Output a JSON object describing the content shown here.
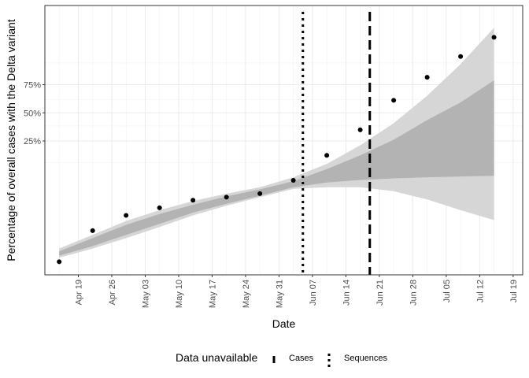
{
  "chart_data": {
    "type": "scatter",
    "xlabel": "Date",
    "ylabel": "Percentage of overall cases with the Delta variant",
    "x_axis": {
      "min": "2021-04-12",
      "max": "2021-07-21",
      "ticks": [
        {
          "date": "2021-04-19",
          "label": "Apr 19"
        },
        {
          "date": "2021-04-26",
          "label": "Apr 26"
        },
        {
          "date": "2021-05-03",
          "label": "May 03"
        },
        {
          "date": "2021-05-10",
          "label": "May 10"
        },
        {
          "date": "2021-05-17",
          "label": "May 17"
        },
        {
          "date": "2021-05-24",
          "label": "May 24"
        },
        {
          "date": "2021-05-31",
          "label": "May 31"
        },
        {
          "date": "2021-06-07",
          "label": "Jun 07"
        },
        {
          "date": "2021-06-14",
          "label": "Jun 14"
        },
        {
          "date": "2021-06-21",
          "label": "Jun 21"
        },
        {
          "date": "2021-06-28",
          "label": "Jun 28"
        },
        {
          "date": "2021-07-05",
          "label": "Jul 05"
        },
        {
          "date": "2021-07-12",
          "label": "Jul 12"
        },
        {
          "date": "2021-07-19",
          "label": "Jul 19"
        }
      ]
    },
    "y_axis": {
      "scale": "logit",
      "ticks": [
        {
          "value": 0.25,
          "label": "25%"
        },
        {
          "value": 0.5,
          "label": "50%"
        },
        {
          "value": 0.75,
          "label": "75%"
        }
      ]
    },
    "observed": [
      {
        "date": "2021-04-15",
        "value": 0.003
      },
      {
        "date": "2021-04-22",
        "value": 0.01
      },
      {
        "date": "2021-04-29",
        "value": 0.018
      },
      {
        "date": "2021-05-06",
        "value": 0.024
      },
      {
        "date": "2021-05-13",
        "value": 0.032
      },
      {
        "date": "2021-05-20",
        "value": 0.036
      },
      {
        "date": "2021-05-27",
        "value": 0.041
      },
      {
        "date": "2021-06-03",
        "value": 0.067
      },
      {
        "date": "2021-06-10",
        "value": 0.16
      },
      {
        "date": "2021-06-17",
        "value": 0.34
      },
      {
        "date": "2021-06-24",
        "value": 0.62
      },
      {
        "date": "2021-07-01",
        "value": 0.8
      },
      {
        "date": "2021-07-08",
        "value": 0.9
      },
      {
        "date": "2021-07-15",
        "value": 0.95
      }
    ],
    "bands": [
      {
        "level": "outer",
        "color": "#d6d6d6",
        "points": [
          {
            "date": "2021-04-15",
            "lower": 0.0035,
            "upper": 0.005
          },
          {
            "date": "2021-04-22",
            "lower": 0.005,
            "upper": 0.0085
          },
          {
            "date": "2021-04-29",
            "lower": 0.0075,
            "upper": 0.0145
          },
          {
            "date": "2021-05-06",
            "lower": 0.0115,
            "upper": 0.022
          },
          {
            "date": "2021-05-13",
            "lower": 0.018,
            "upper": 0.031
          },
          {
            "date": "2021-05-20",
            "lower": 0.026,
            "upper": 0.041
          },
          {
            "date": "2021-05-27",
            "lower": 0.036,
            "upper": 0.052
          },
          {
            "date": "2021-06-03",
            "lower": 0.049,
            "upper": 0.075
          },
          {
            "date": "2021-06-10",
            "lower": 0.052,
            "upper": 0.12
          },
          {
            "date": "2021-06-17",
            "lower": 0.052,
            "upper": 0.22
          },
          {
            "date": "2021-06-24",
            "lower": 0.045,
            "upper": 0.4
          },
          {
            "date": "2021-07-01",
            "lower": 0.033,
            "upper": 0.66
          },
          {
            "date": "2021-07-08",
            "lower": 0.022,
            "upper": 0.87
          },
          {
            "date": "2021-07-15",
            "lower": 0.015,
            "upper": 0.965
          }
        ]
      },
      {
        "level": "inner",
        "color": "#b3b3b3",
        "points": [
          {
            "date": "2021-04-15",
            "lower": 0.0038,
            "upper": 0.0045
          },
          {
            "date": "2021-04-22",
            "lower": 0.0055,
            "upper": 0.0075
          },
          {
            "date": "2021-04-29",
            "lower": 0.0085,
            "upper": 0.0125
          },
          {
            "date": "2021-05-06",
            "lower": 0.013,
            "upper": 0.019
          },
          {
            "date": "2021-05-13",
            "lower": 0.02,
            "upper": 0.027
          },
          {
            "date": "2021-05-20",
            "lower": 0.028,
            "upper": 0.037
          },
          {
            "date": "2021-05-27",
            "lower": 0.038,
            "upper": 0.048
          },
          {
            "date": "2021-06-03",
            "lower": 0.052,
            "upper": 0.065
          },
          {
            "date": "2021-06-10",
            "lower": 0.062,
            "upper": 0.1
          },
          {
            "date": "2021-06-17",
            "lower": 0.068,
            "upper": 0.16
          },
          {
            "date": "2021-06-24",
            "lower": 0.072,
            "upper": 0.26
          },
          {
            "date": "2021-07-01",
            "lower": 0.075,
            "upper": 0.43
          },
          {
            "date": "2021-07-08",
            "lower": 0.077,
            "upper": 0.6
          },
          {
            "date": "2021-07-15",
            "lower": 0.079,
            "upper": 0.78
          }
        ]
      }
    ],
    "vlines": [
      {
        "date": "2021-06-05",
        "style": "dotted",
        "name": "Sequences"
      },
      {
        "date": "2021-06-19",
        "style": "dashed",
        "name": "Cases"
      }
    ],
    "legend": {
      "title": "Data unavailable",
      "position": "bottom",
      "items": [
        {
          "label": "Cases",
          "style": "dashed"
        },
        {
          "label": "Sequences",
          "style": "dotted"
        }
      ]
    },
    "grid": true,
    "theme": "bw"
  }
}
